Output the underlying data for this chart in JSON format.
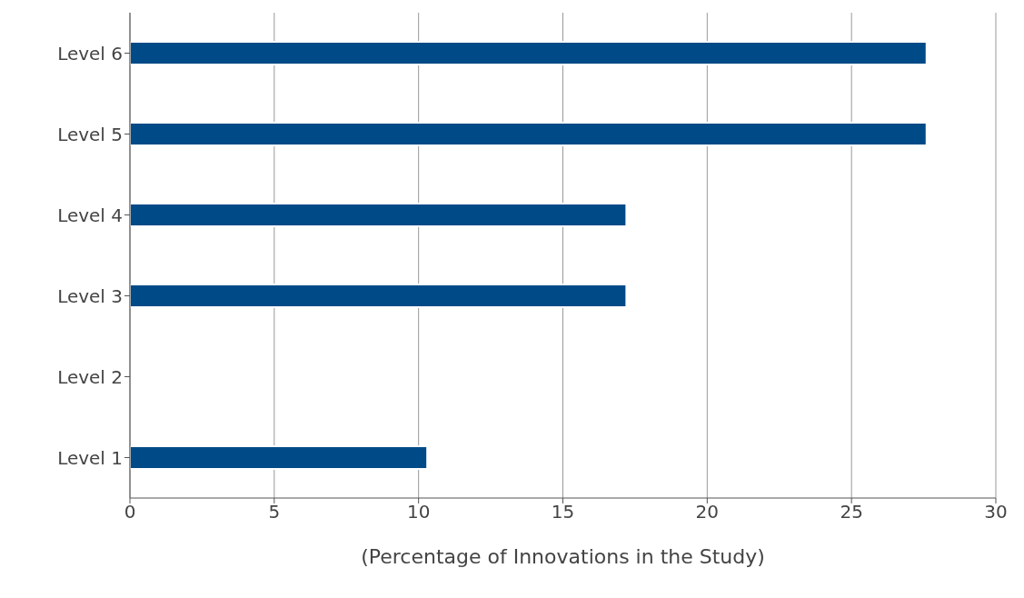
{
  "chart_data": {
    "type": "bar",
    "orientation": "horizontal",
    "xlabel": "(Percentage of Innovations in the Study)",
    "categories": [
      "Level 6",
      "Level 5",
      "Level 4",
      "Level 3",
      "Level 2",
      "Level 1"
    ],
    "values": [
      27.6,
      27.6,
      17.2,
      17.2,
      0,
      10.3
    ],
    "color": "#004b87",
    "xlim": [
      0,
      30
    ],
    "xticks": [
      0,
      5,
      10,
      15,
      20,
      25,
      30
    ],
    "grid": "x"
  }
}
